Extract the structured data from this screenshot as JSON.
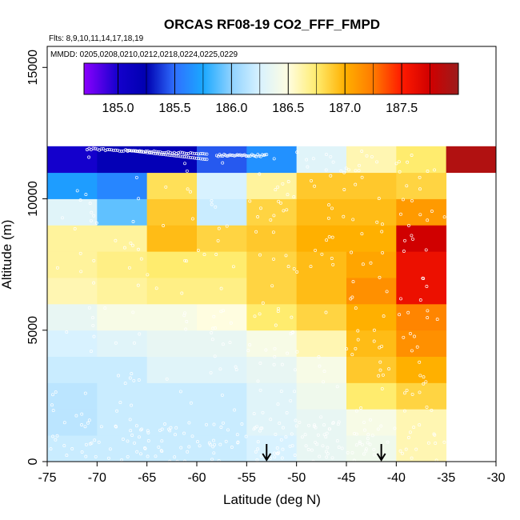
{
  "chart_data": {
    "type": "heatmap",
    "title": "ORCAS RF08-19 CO2_FFF_FMPD",
    "flights_note": "Flts: 8,9,10,11,14,17,18,19",
    "dates_note": "MMDD: 0205,0208,0210,0212,0218,0224,0225,0229",
    "xlabel": "Latitude (deg N)",
    "ylabel": "Altitude (m)",
    "xlim": [
      -75,
      -30
    ],
    "ylim": [
      0,
      15800
    ],
    "xticks": [
      "-75",
      "-70",
      "-65",
      "-60",
      "-55",
      "-50",
      "-45",
      "-40",
      "-35",
      "-30"
    ],
    "yticks": [
      "0",
      "5000",
      "10000",
      "15000"
    ],
    "colorbar": {
      "min": 184.7,
      "max": 188.0,
      "ticks": [
        "185.0",
        "185.5",
        "186.0",
        "186.5",
        "187.0",
        "187.5"
      ],
      "tick_values": [
        185.0,
        185.5,
        186.0,
        186.5,
        187.0,
        187.5
      ],
      "stops": [
        {
          "v": 184.7,
          "c": "#8b00ff"
        },
        {
          "v": 185.0,
          "c": "#1400cc"
        },
        {
          "v": 185.25,
          "c": "#0000b0"
        },
        {
          "v": 185.5,
          "c": "#2f6fff"
        },
        {
          "v": 185.75,
          "c": "#1aa8ff"
        },
        {
          "v": 186.0,
          "c": "#8fd2ff"
        },
        {
          "v": 186.25,
          "c": "#d8f2ff"
        },
        {
          "v": 186.5,
          "c": "#fffde0"
        },
        {
          "v": 186.75,
          "c": "#ffec6e"
        },
        {
          "v": 187.0,
          "c": "#ffb000"
        },
        {
          "v": 187.25,
          "c": "#ff7a00"
        },
        {
          "v": 187.5,
          "c": "#ff1a00"
        },
        {
          "v": 187.75,
          "c": "#d00000"
        },
        {
          "v": 188.0,
          "c": "#9c1c1c"
        }
      ]
    },
    "lat_bins": [
      -75,
      -70,
      -65,
      -60,
      -55,
      -50,
      -45,
      -40,
      -35,
      -30
    ],
    "alt_bins": [
      0,
      1000,
      2000,
      3000,
      4000,
      5000,
      6000,
      7000,
      8000,
      9000,
      10000,
      11000,
      12000
    ],
    "grid": [
      [
        186.2,
        186.2,
        186.2,
        186.2,
        186.25,
        186.35,
        186.4,
        186.6,
        null
      ],
      [
        186.15,
        186.2,
        186.2,
        186.2,
        186.3,
        186.35,
        186.45,
        186.6,
        null
      ],
      [
        186.15,
        186.2,
        186.2,
        186.2,
        186.3,
        186.4,
        186.75,
        186.85,
        null
      ],
      [
        186.2,
        186.2,
        186.3,
        186.3,
        186.35,
        186.45,
        186.9,
        187.0,
        null
      ],
      [
        186.25,
        186.3,
        186.35,
        186.35,
        186.45,
        186.6,
        186.95,
        187.15,
        null
      ],
      [
        186.35,
        186.45,
        186.45,
        186.5,
        186.75,
        186.85,
        187.0,
        187.2,
        null
      ],
      [
        186.6,
        186.65,
        186.7,
        186.7,
        186.85,
        186.95,
        187.15,
        187.6,
        null
      ],
      [
        186.65,
        186.7,
        186.75,
        186.75,
        186.85,
        186.95,
        187.05,
        187.6,
        null
      ],
      [
        186.65,
        186.65,
        186.95,
        186.85,
        186.9,
        187.0,
        187.0,
        187.75,
        null
      ],
      [
        186.3,
        185.9,
        186.9,
        186.2,
        186.85,
        186.95,
        186.95,
        187.1,
        null
      ],
      [
        185.7,
        185.6,
        186.8,
        186.25,
        186.65,
        186.9,
        186.9,
        186.85,
        null
      ],
      [
        185.0,
        185.2,
        185.2,
        185.45,
        185.65,
        186.3,
        186.6,
        186.75,
        187.9
      ]
    ],
    "samples": "flight data points (white circles)",
    "markers": [
      {
        "type": "arrow",
        "lat": -53.0
      },
      {
        "type": "arrow",
        "lat": -41.5
      }
    ]
  }
}
